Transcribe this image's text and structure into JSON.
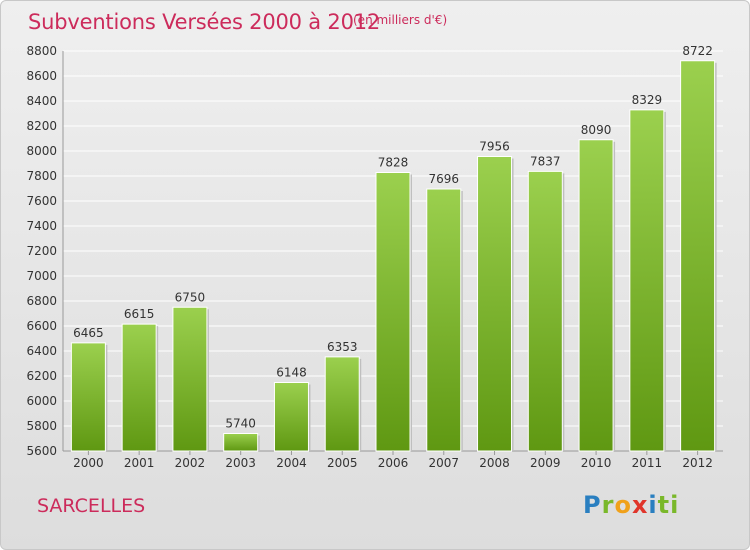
{
  "colors": {
    "title": "#cc2b5b",
    "bar_top": "#9bd04e",
    "bar_bottom": "#5f9812",
    "grid": "#ffffff",
    "text": "#333333"
  },
  "branding": {
    "place": "SARCELLES",
    "logo_text": "Proxiti"
  },
  "chart_data": {
    "type": "bar",
    "title": "Subventions Versées 2000 à 2012",
    "subtitle": "(en milliers d'€)",
    "xlabel": "",
    "ylabel": "",
    "ylim": [
      5600,
      8800
    ],
    "yticks": [
      5600,
      5800,
      6000,
      6200,
      6400,
      6600,
      6800,
      7000,
      7200,
      7400,
      7600,
      7800,
      8000,
      8200,
      8400,
      8600,
      8800
    ],
    "grid": true,
    "categories": [
      "2000",
      "2001",
      "2002",
      "2003",
      "2004",
      "2005",
      "2006",
      "2007",
      "2008",
      "2009",
      "2010",
      "2011",
      "2012"
    ],
    "values": [
      6465,
      6615,
      6750,
      5740,
      6148,
      6353,
      7828,
      7696,
      7956,
      7837,
      8090,
      8329,
      8722
    ]
  }
}
